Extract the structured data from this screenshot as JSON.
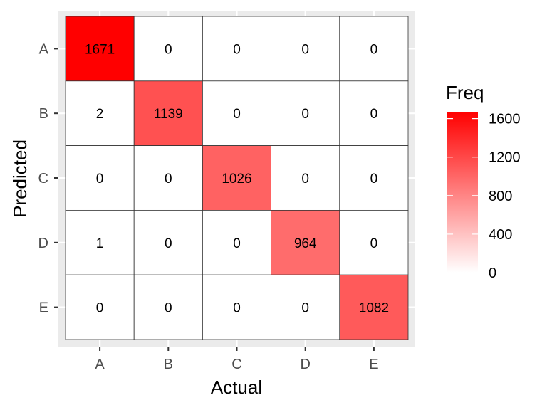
{
  "chart_data": {
    "type": "heatmap",
    "xlabel": "Actual",
    "ylabel": "Predicted",
    "x_categories": [
      "A",
      "B",
      "C",
      "D",
      "E"
    ],
    "y_categories": [
      "A",
      "B",
      "C",
      "D",
      "E"
    ],
    "matrix": [
      [
        1671,
        0,
        0,
        0,
        0
      ],
      [
        2,
        1139,
        0,
        0,
        0
      ],
      [
        0,
        0,
        1026,
        0,
        0
      ],
      [
        1,
        0,
        0,
        964,
        0
      ],
      [
        0,
        0,
        0,
        0,
        1082
      ]
    ],
    "legend": {
      "title": "Freq",
      "ticks": [
        "0",
        "400",
        "800",
        "1200",
        "1600"
      ],
      "range": [
        0,
        1671
      ],
      "low_color": "#ffffff",
      "high_color": "#ff0000"
    },
    "grid": true
  }
}
